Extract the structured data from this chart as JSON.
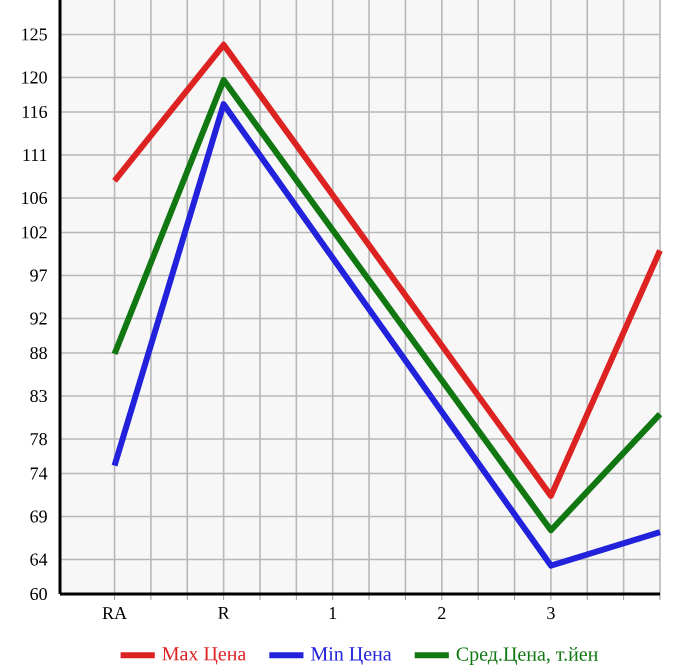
{
  "chart_data": {
    "type": "line",
    "categories": [
      "RA",
      "R",
      "1",
      "2",
      "3",
      null
    ],
    "series": [
      {
        "name": "Max Цена",
        "color": "#dd2222",
        "values": [
          108.0,
          123.8,
          null,
          null,
          71.4,
          99.9
        ]
      },
      {
        "name": "Min Цена",
        "color": "#2222dd",
        "values": [
          74.9,
          116.9,
          null,
          null,
          63.3,
          67.2
        ]
      },
      {
        "name": "Сред.Цена, т.йен",
        "color": "#117711",
        "values": [
          87.9,
          119.7,
          null,
          null,
          67.4,
          80.9
        ]
      }
    ],
    "ylim": [
      60,
      129
    ],
    "yticks": [
      60,
      64,
      69,
      74,
      78,
      83,
      88,
      92,
      97,
      102,
      106,
      111,
      116,
      120,
      125
    ],
    "grid": true,
    "legend": "bottom",
    "marker": "none",
    "line_style": "solid"
  }
}
